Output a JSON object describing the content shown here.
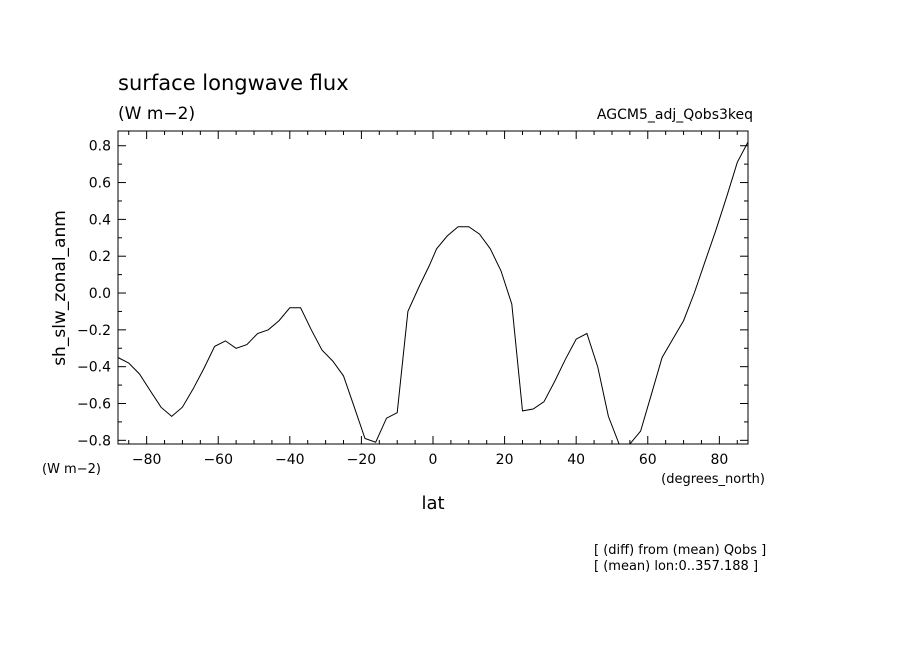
{
  "chart_data": {
    "type": "line",
    "title": "surface longwave flux",
    "title_units": "(W m−2)",
    "experiment_label": "AGCM5_adj_Qobs3keq",
    "ylabel": "sh_slw_zonal_anm",
    "ylabel_units": "(W m−2)",
    "xlabel": "lat",
    "xlabel_units": "(degrees_north)",
    "xlim": [
      -88,
      88
    ],
    "ylim": [
      -0.82,
      0.88
    ],
    "xticks": [
      -80,
      -60,
      -40,
      -20,
      0,
      20,
      40,
      60,
      80
    ],
    "xtick_labels": [
      "−80",
      "−60",
      "−40",
      "−20",
      "0",
      "20",
      "40",
      "60",
      "80"
    ],
    "yticks": [
      -0.8,
      -0.6,
      -0.4,
      -0.2,
      0.0,
      0.2,
      0.4,
      0.6,
      0.8
    ],
    "ytick_labels": [
      "−0.8",
      "−0.6",
      "−0.4",
      "−0.2",
      "0.0",
      "0.2",
      "0.4",
      "0.6",
      "0.8"
    ],
    "grid": false,
    "series": [
      {
        "x": [
          -88,
          -85,
          -82,
          -79,
          -76,
          -73,
          -70,
          -67,
          -64,
          -61,
          -58,
          -55,
          -52,
          -49,
          -46,
          -43,
          -40,
          -37,
          -34,
          -31,
          -28,
          -25,
          -22,
          -19,
          -16,
          -13,
          -10,
          -7,
          -4,
          -1,
          1,
          4,
          7,
          10,
          13,
          16,
          19,
          22,
          25,
          28,
          31,
          34,
          37,
          40,
          43,
          46,
          49,
          52,
          55,
          58,
          61,
          64,
          67,
          70,
          73,
          76,
          79,
          82,
          85,
          88
        ],
        "y": [
          -0.35,
          -0.38,
          -0.44,
          -0.53,
          -0.62,
          -0.67,
          -0.62,
          -0.52,
          -0.41,
          -0.29,
          -0.26,
          -0.3,
          -0.28,
          -0.22,
          -0.2,
          -0.15,
          -0.08,
          -0.08,
          -0.2,
          -0.31,
          -0.37,
          -0.45,
          -0.62,
          -0.79,
          -0.81,
          -0.68,
          -0.65,
          -0.1,
          0.03,
          0.15,
          0.24,
          0.31,
          0.36,
          0.36,
          0.32,
          0.24,
          0.12,
          -0.06,
          -0.64,
          -0.63,
          -0.59,
          -0.48,
          -0.36,
          -0.25,
          -0.22,
          -0.4,
          -0.67,
          -0.82,
          -0.82,
          -0.75,
          -0.55,
          -0.35,
          -0.25,
          -0.15,
          0.0,
          0.17,
          0.34,
          0.52,
          0.71,
          0.82
        ]
      }
    ],
    "notes": [
      "[ (diff) from (mean) Qobs ]",
      "[ (mean) lon:0..357.188 ]"
    ]
  }
}
